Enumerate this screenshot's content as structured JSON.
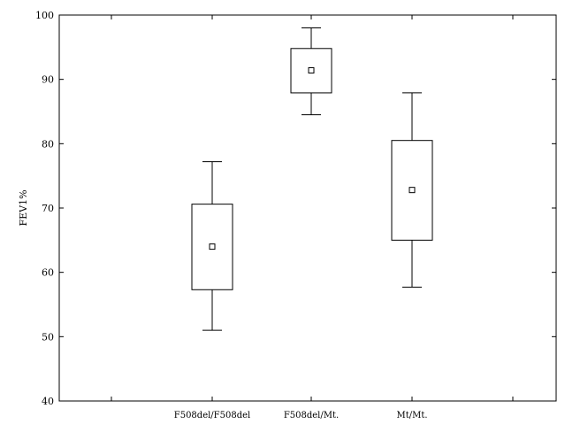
{
  "chart_data": {
    "type": "box",
    "title": "",
    "xlabel": "",
    "ylabel": "FEV1%",
    "ylim": [
      40,
      100
    ],
    "yticks": [
      40,
      50,
      60,
      70,
      80,
      90,
      100
    ],
    "categories": [
      "F508del/F508del",
      "F508del/Mt.",
      "Mt/Mt."
    ],
    "boxes": [
      {
        "category": "F508del/F508del",
        "whisker_low": 51,
        "q1": 57.3,
        "median": 64,
        "q3": 70.6,
        "whisker_high": 77.2
      },
      {
        "category": "F508del/Mt.",
        "whisker_low": 84.5,
        "q1": 87.9,
        "median": 91.4,
        "q3": 94.8,
        "whisker_high": 98
      },
      {
        "category": "Mt/Mt.",
        "whisker_low": 57.7,
        "q1": 65,
        "median": 72.8,
        "q3": 80.5,
        "whisker_high": 87.9
      }
    ],
    "grid": false,
    "legend": "none"
  }
}
